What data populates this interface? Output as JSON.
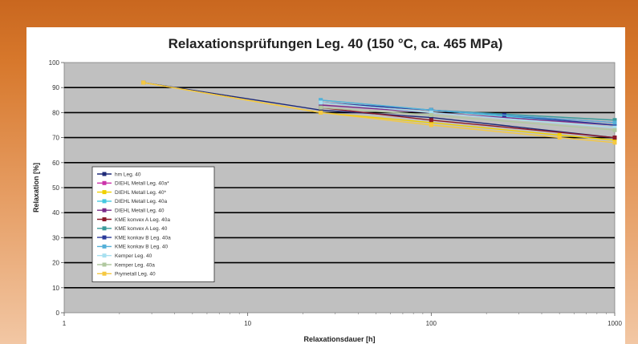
{
  "chart_data": {
    "type": "line",
    "title": "Relaxationsprüfungen Leg. 40 (150 °C, ca. 465 MPa)",
    "xlabel": "Relaxationsdauer [h]",
    "ylabel": "Relaxation [%]",
    "x_scale": "log",
    "xlim": [
      1,
      1000
    ],
    "ylim": [
      0,
      100
    ],
    "x_ticks": [
      "1",
      "10",
      "100",
      "1000"
    ],
    "y_ticks": [
      "0",
      "10",
      "20",
      "30",
      "40",
      "50",
      "60",
      "70",
      "80",
      "90",
      "100"
    ],
    "grid": true,
    "legend_position": "left",
    "series": [
      {
        "name": "hm Leg. 40",
        "color": "#1f2a78",
        "x": [
          2.7,
          25,
          100,
          1000
        ],
        "y": [
          92,
          81,
          78,
          70
        ]
      },
      {
        "name": "DIEHL Metall Leg. 40a*",
        "color": "#cc33aa",
        "x": [
          25,
          100,
          1000
        ],
        "y": [
          84,
          81,
          76
        ]
      },
      {
        "name": "DIEHL Metall Leg. 40*",
        "color": "#f0d000",
        "x": [
          2.7,
          25,
          100,
          500,
          1000
        ],
        "y": [
          92,
          80,
          76,
          71,
          69
        ]
      },
      {
        "name": "DIEHL Metall Leg. 40a",
        "color": "#44c8e0",
        "x": [
          25,
          100,
          1000
        ],
        "y": [
          85,
          81,
          75
        ]
      },
      {
        "name": "DIEHL Metall Leg. 40",
        "color": "#7a2a8a",
        "x": [
          25,
          100,
          1000
        ],
        "y": [
          83,
          80,
          75
        ]
      },
      {
        "name": "KME konvex A Leg. 40a",
        "color": "#8b1a2a",
        "x": [
          25,
          100,
          1000
        ],
        "y": [
          82,
          77,
          70
        ]
      },
      {
        "name": "KME konvex A Leg. 40",
        "color": "#3a9a9a",
        "x": [
          25,
          100,
          1000
        ],
        "y": [
          84,
          81,
          77
        ]
      },
      {
        "name": "KME konkav B Leg. 40a",
        "color": "#2a3a9a",
        "x": [
          25,
          100,
          250,
          1000
        ],
        "y": [
          84,
          81,
          79,
          75
        ]
      },
      {
        "name": "KME konkav B Leg. 40",
        "color": "#55b0d8",
        "x": [
          25,
          100,
          1000
        ],
        "y": [
          85,
          81,
          76
        ]
      },
      {
        "name": "Kemper Leg. 40",
        "color": "#a8e0f0",
        "x": [
          25,
          100,
          1000
        ],
        "y": [
          84,
          80,
          74
        ]
      },
      {
        "name": "Kemper Leg. 40a",
        "color": "#b0c8a0",
        "x": [
          25,
          100,
          1000
        ],
        "y": [
          82,
          79,
          73
        ]
      },
      {
        "name": "Prymetall Leg. 40",
        "color": "#f5c842",
        "x": [
          2.7,
          25,
          100,
          500,
          1000
        ],
        "y": [
          92,
          80,
          75,
          70,
          68
        ]
      }
    ]
  }
}
